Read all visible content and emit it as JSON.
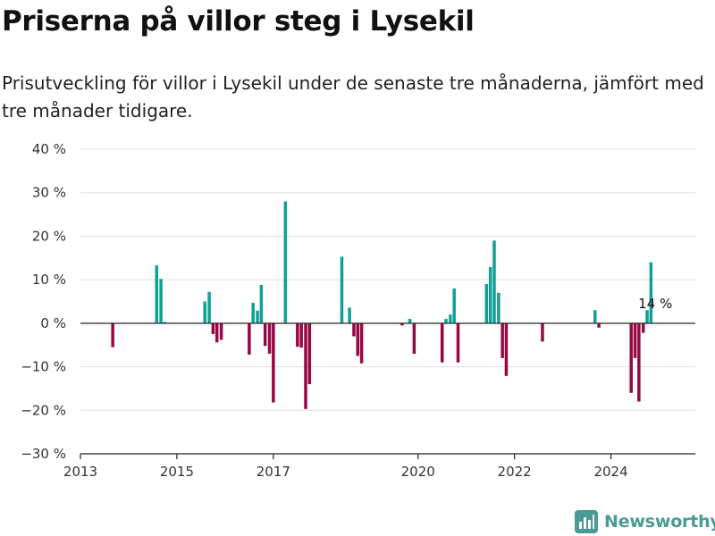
{
  "header": {
    "title": "Priserna på villor steg i Lysekil",
    "subtitle": "Prisutveckling för villor i Lysekil under de senaste tre månaderna, jämfört med tre månader tidigare."
  },
  "brand": {
    "name": "Newsworthy",
    "color": "#4a9a95"
  },
  "colors": {
    "positive": "#10a195",
    "negative": "#950845",
    "grid": "#e0e0e0",
    "axis": "#222222"
  },
  "chart_data": {
    "type": "bar",
    "title": "",
    "xlabel": "",
    "ylabel": "",
    "ylim": [
      -30,
      40
    ],
    "yticks": [
      40,
      30,
      20,
      10,
      0,
      -10,
      -20,
      -30
    ],
    "ytick_labels": [
      "40 %",
      "30 %",
      "20 %",
      "10 %",
      "0 %",
      "−10 %",
      "−20 %",
      "−30 %"
    ],
    "xlim": [
      2013.0,
      2025.75
    ],
    "xticks": [
      2013,
      2015,
      2017,
      2020,
      2022,
      2024
    ],
    "xtick_labels": [
      "2013",
      "2015",
      "2017",
      "2020",
      "2022",
      "2024"
    ],
    "grid": true,
    "annotation": {
      "x": 2024.92,
      "label": "14 %"
    },
    "series": [
      {
        "x": [
          2013.67,
          2014.58,
          2014.67,
          2014.75,
          2015.58,
          2015.67,
          2015.75,
          2015.83,
          2015.92,
          2016.5,
          2016.58,
          2016.67,
          2016.75,
          2016.83,
          2016.92,
          2017.0,
          2017.25,
          2017.5,
          2017.58,
          2017.67,
          2017.75,
          2018.42,
          2018.58,
          2018.67,
          2018.75,
          2018.83,
          2019.67,
          2019.83,
          2019.92,
          2020.5,
          2020.58,
          2020.67,
          2020.75,
          2020.83,
          2021.42,
          2021.5,
          2021.58,
          2021.67,
          2021.75,
          2021.83,
          2022.58,
          2023.67,
          2023.75,
          2024.42,
          2024.5,
          2024.58,
          2024.67,
          2024.75,
          2024.83
        ],
        "values": [
          -5.5,
          13.3,
          10.2,
          0.3,
          5.0,
          7.2,
          -2.5,
          -4.4,
          -3.8,
          -7.2,
          4.7,
          2.9,
          8.8,
          -5.2,
          -7.0,
          -18.2,
          28.0,
          -5.4,
          -5.6,
          -19.7,
          -14.0,
          15.3,
          3.6,
          -3.0,
          -7.5,
          -9.2,
          -0.5,
          1.0,
          -7.0,
          -9.0,
          1.0,
          2.0,
          8.0,
          -9.0,
          9.0,
          12.9,
          19.0,
          7.0,
          -8.0,
          -12.1,
          -4.2,
          3.0,
          -1.0,
          -16.0,
          -8.0,
          -18.0,
          -2.2,
          3.0,
          14.0
        ]
      }
    ]
  }
}
